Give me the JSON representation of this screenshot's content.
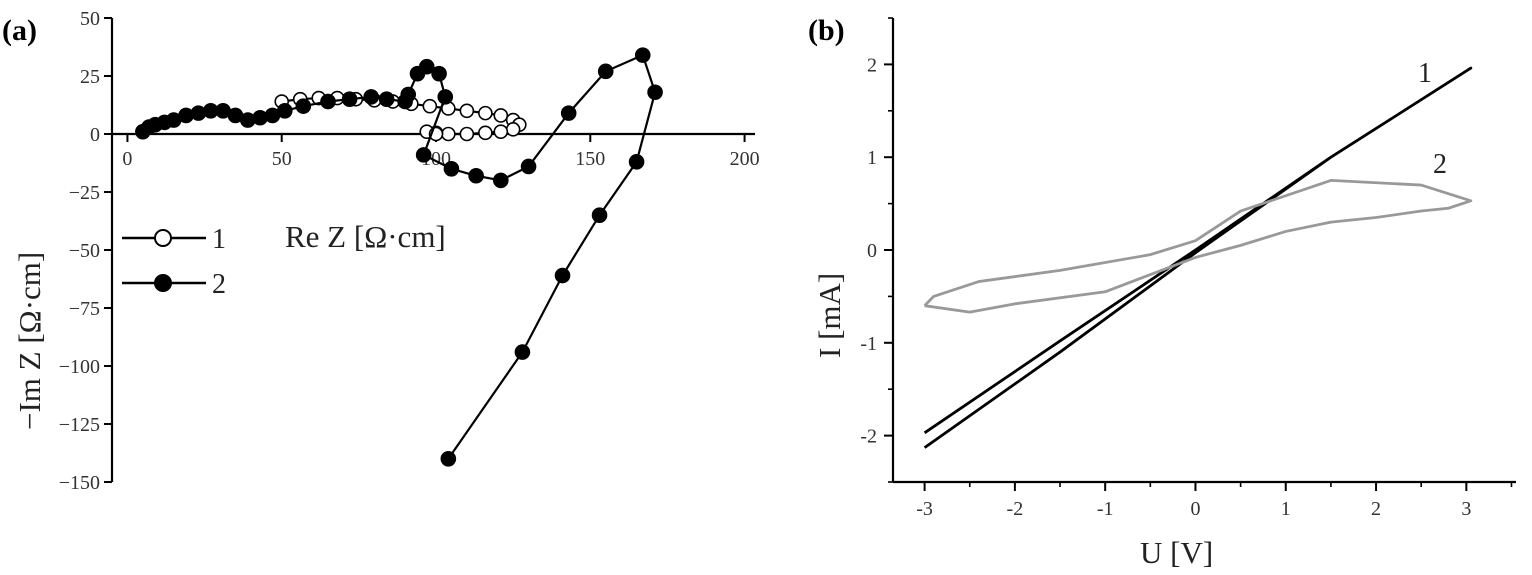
{
  "chart_data": [
    {
      "panel_label": "(a)",
      "type": "scatter",
      "xlabel": "Re Z [Ω·cm]",
      "ylabel": "−Im Z [Ω·cm]",
      "xlim": [
        -5,
        205
      ],
      "ylim": [
        -150,
        50
      ],
      "x_ticks": [
        0,
        50,
        100,
        150,
        200
      ],
      "y_ticks": [
        50,
        25,
        0,
        -25,
        -50,
        -75,
        -100,
        -125,
        -150
      ],
      "legend_position": "middle-left",
      "series": [
        {
          "name": "1",
          "marker": "open-circle",
          "x": [
            50,
            56,
            62,
            68,
            74,
            80,
            86,
            92,
            98,
            104,
            110,
            116,
            121,
            125,
            127,
            125,
            121,
            116,
            110,
            104,
            100,
            97,
            100
          ],
          "y": [
            14,
            15,
            15.5,
            15.5,
            15,
            14.5,
            14,
            13,
            12,
            11,
            10,
            9,
            8,
            6,
            4,
            2,
            1,
            0.5,
            0,
            0,
            0.5,
            1,
            0
          ]
        },
        {
          "name": "2",
          "marker": "filled-circle",
          "x": [
            5,
            7,
            9,
            12,
            15,
            19,
            23,
            27,
            31,
            35,
            39,
            43,
            47,
            51,
            57,
            65,
            72,
            79,
            84,
            90,
            91,
            94,
            97,
            101,
            103,
            96,
            105,
            113,
            121,
            130,
            143,
            155,
            167,
            171,
            165,
            153,
            141,
            128,
            104
          ],
          "y": [
            1,
            3,
            4,
            5,
            6,
            8,
            9,
            10,
            10,
            8,
            6,
            7,
            8,
            10,
            12,
            14,
            15,
            16,
            15,
            14,
            17,
            26,
            29,
            26,
            16,
            -9,
            -15,
            -18,
            -20,
            -14,
            9,
            27,
            34,
            18,
            -12,
            -35,
            -61,
            -94,
            -140
          ]
        }
      ]
    },
    {
      "panel_label": "(b)",
      "type": "line",
      "xlabel": "U [V]",
      "ylabel": "I [mA]",
      "xlim": [
        -3.35,
        3.55
      ],
      "ylim": [
        -2.5,
        2.5
      ],
      "x_ticks": [
        -3,
        -2,
        -1,
        0,
        1,
        2,
        3
      ],
      "y_ticks": [
        2,
        1,
        0,
        -1,
        -2
      ],
      "series": [
        {
          "name": "1",
          "color": "#000000",
          "x": [
            -3,
            -1.5,
            0,
            1.5,
            3.05,
            1.5,
            0,
            -1.5,
            -3
          ],
          "y": [
            -2.13,
            -1.1,
            -0.03,
            1.0,
            1.96,
            1.0,
            0.0,
            -0.98,
            -1.97
          ]
        },
        {
          "name": "2",
          "color": "#999999",
          "x": [
            -3,
            -2.5,
            -2,
            -1,
            0,
            0.5,
            1,
            1.5,
            2,
            2.5,
            2.8,
            3.05,
            2.5,
            1.5,
            0.5,
            0,
            -0.5,
            -1.5,
            -2.4,
            -2.9,
            -3
          ],
          "y": [
            -0.6,
            -0.67,
            -0.58,
            -0.45,
            -0.08,
            0.05,
            0.2,
            0.3,
            0.35,
            0.42,
            0.45,
            0.53,
            0.7,
            0.75,
            0.42,
            0.1,
            -0.05,
            -0.22,
            -0.34,
            -0.5,
            -0.6
          ]
        }
      ]
    }
  ]
}
